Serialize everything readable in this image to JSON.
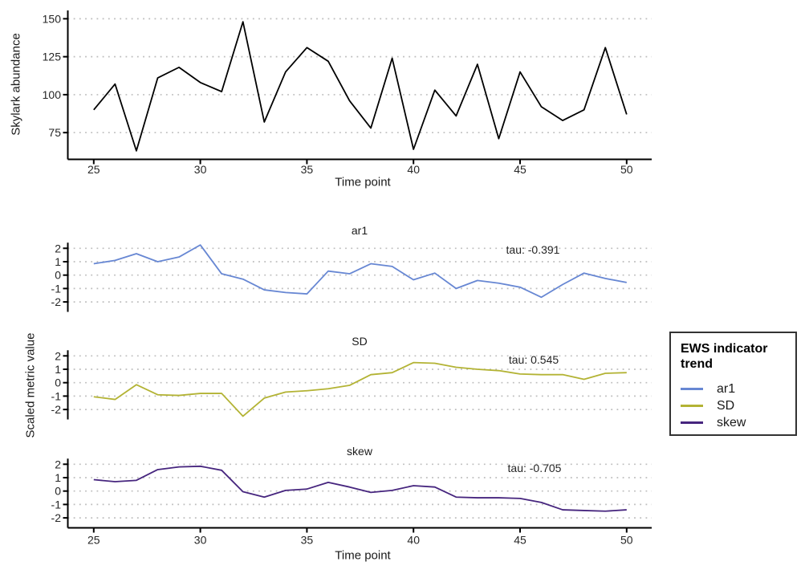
{
  "figure": {
    "top_panel": {
      "ylabel": "Skylark abundance",
      "xlabel": "Time point"
    },
    "bottom_panel": {
      "ylabel": "Scaled metric value",
      "xlabel": "Time point"
    },
    "facets": [
      {
        "title": "ar1",
        "tau_label": "tau: -0.391"
      },
      {
        "title": "SD",
        "tau_label": "tau: 0.545"
      },
      {
        "title": "skew",
        "tau_label": "tau: -0.705"
      }
    ],
    "legend": {
      "title": "EWS indicator trend",
      "items": [
        {
          "label": "ar1",
          "color": "#6787d3"
        },
        {
          "label": "SD",
          "color": "#b3b334"
        },
        {
          "label": "skew",
          "color": "#46257e"
        }
      ]
    },
    "colors": {
      "abundance_line": "#000000",
      "gridline": "#bdbdbd",
      "axis": "#000000",
      "tick_text": "#262626"
    }
  },
  "chart_data": [
    {
      "type": "line",
      "title": "",
      "xlabel": "Time point",
      "ylabel": "Skylark abundance",
      "x": [
        25,
        26,
        27,
        28,
        29,
        30,
        31,
        32,
        33,
        34,
        35,
        36,
        37,
        38,
        39,
        40,
        41,
        42,
        43,
        44,
        45,
        46,
        47,
        48,
        49,
        50
      ],
      "series": [
        {
          "name": "Skylark abundance",
          "color": "#000000",
          "values": [
            90,
            107,
            63,
            111,
            118,
            108,
            102,
            148,
            82,
            115,
            131,
            122,
            96,
            78,
            124,
            64,
            103,
            86,
            120,
            71,
            115,
            92,
            83,
            90,
            131,
            87
          ]
        }
      ],
      "xticks": [
        25,
        30,
        35,
        40,
        45,
        50
      ],
      "yticks": [
        75,
        100,
        125,
        150
      ],
      "ylim": [
        58,
        152
      ],
      "grid": "dotted-horizontal",
      "legend_position": "none"
    },
    {
      "type": "line",
      "title": "",
      "xlabel": "Time point",
      "ylabel": "Scaled metric value",
      "x": [
        25,
        26,
        27,
        28,
        29,
        30,
        31,
        32,
        33,
        34,
        35,
        36,
        37,
        38,
        39,
        40,
        41,
        42,
        43,
        44,
        45,
        46,
        47,
        48,
        49,
        50
      ],
      "facets": [
        {
          "title": "ar1",
          "tau": -0.391,
          "color": "#6787d3",
          "values": [
            0.85,
            1.1,
            1.6,
            1.0,
            1.35,
            2.25,
            0.1,
            -0.3,
            -1.1,
            -1.3,
            -1.4,
            0.3,
            0.1,
            0.85,
            0.65,
            -0.35,
            0.15,
            -1.0,
            -0.4,
            -0.6,
            -0.9,
            -1.65,
            -0.7,
            0.15,
            -0.25,
            -0.55
          ]
        },
        {
          "title": "SD",
          "tau": 0.545,
          "color": "#b3b334",
          "values": [
            -1.05,
            -1.25,
            -0.15,
            -0.9,
            -0.95,
            -0.8,
            -0.8,
            -2.5,
            -1.15,
            -0.7,
            -0.6,
            -0.45,
            -0.2,
            0.6,
            0.75,
            1.5,
            1.45,
            1.15,
            1.0,
            0.9,
            0.65,
            0.6,
            0.6,
            0.25,
            0.7,
            0.75
          ]
        },
        {
          "title": "skew",
          "tau": -0.705,
          "color": "#46257e",
          "values": [
            0.85,
            0.7,
            0.8,
            1.6,
            1.8,
            1.85,
            1.55,
            -0.05,
            -0.45,
            0.05,
            0.15,
            0.65,
            0.3,
            -0.1,
            0.05,
            0.4,
            0.3,
            -0.45,
            -0.5,
            -0.5,
            -0.55,
            -0.85,
            -1.4,
            -1.45,
            -1.5,
            -1.4
          ]
        }
      ],
      "xticks": [
        25,
        30,
        35,
        40,
        45,
        50
      ],
      "yticks": [
        -2,
        -1,
        0,
        1,
        2
      ],
      "ylim": [
        -2.8,
        2.8
      ],
      "grid": "dotted-horizontal",
      "legend_title": "EWS indicator trend",
      "legend_position": "right"
    }
  ]
}
